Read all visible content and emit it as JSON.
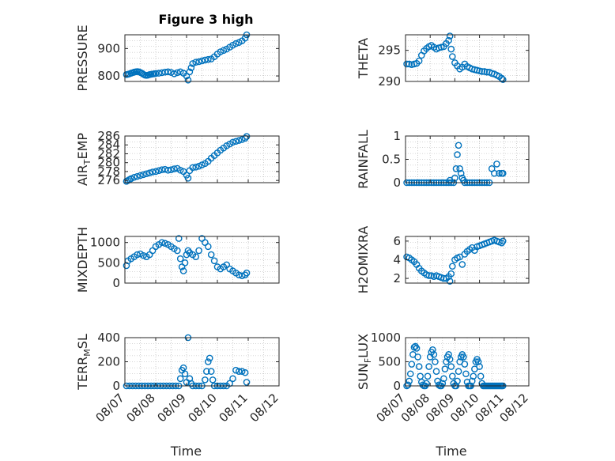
{
  "figure_title": "Figure 3 high",
  "x_axis_label": "Time",
  "x_tick_labels": [
    "08/07",
    "08/08",
    "08/09",
    "08/10",
    "08/11",
    "08/12"
  ],
  "colors": {
    "series": "#0072BD",
    "axes": "#262626",
    "grid": "#b0b0b0"
  },
  "chart_data": [
    {
      "type": "scatter",
      "title": "Figure 3 high",
      "ylabel": "PRESSURE",
      "ylim": [
        780,
        950
      ],
      "yticks": [
        800,
        900
      ],
      "xlim": [
        "08/07",
        "08/12"
      ],
      "grid": true,
      "series": [
        {
          "x": [
            0.05,
            0.1,
            0.15,
            0.2,
            0.25,
            0.3,
            0.35,
            0.4,
            0.45,
            0.5,
            0.55,
            0.6,
            0.65,
            0.7,
            0.75,
            0.8,
            0.85,
            0.9,
            0.95,
            1.0,
            1.1,
            1.2,
            1.3,
            1.4,
            1.5,
            1.6,
            1.7,
            1.8,
            1.9,
            2.0,
            2.05,
            2.1,
            2.15,
            2.2,
            2.3,
            2.4,
            2.5,
            2.6,
            2.7,
            2.8,
            2.9,
            3.0,
            3.1,
            3.2,
            3.3,
            3.4,
            3.5,
            3.6,
            3.7,
            3.8,
            3.9,
            3.95
          ],
          "y": [
            805,
            806,
            808,
            810,
            812,
            814,
            815,
            816,
            815,
            813,
            810,
            806,
            803,
            802,
            803,
            805,
            806,
            807,
            808,
            809,
            810,
            812,
            814,
            815,
            813,
            808,
            812,
            815,
            810,
            800,
            785,
            815,
            830,
            845,
            850,
            852,
            855,
            858,
            860,
            862,
            870,
            880,
            888,
            893,
            898,
            905,
            912,
            918,
            922,
            928,
            938,
            950
          ]
        }
      ]
    },
    {
      "type": "scatter",
      "ylabel": "THETA",
      "ylim": [
        290,
        297.5
      ],
      "yticks": [
        290,
        295
      ],
      "xlim": [
        "08/07",
        "08/12"
      ],
      "grid": true,
      "series": [
        {
          "x": [
            0.05,
            0.15,
            0.25,
            0.35,
            0.45,
            0.55,
            0.65,
            0.75,
            0.85,
            0.95,
            1.05,
            1.15,
            1.25,
            1.35,
            1.45,
            1.55,
            1.65,
            1.75,
            1.8,
            1.85,
            1.9,
            2.0,
            2.1,
            2.2,
            2.3,
            2.4,
            2.5,
            2.6,
            2.7,
            2.8,
            2.9,
            3.0,
            3.1,
            3.2,
            3.3,
            3.4,
            3.5,
            3.6,
            3.7,
            3.8,
            3.9,
            3.95
          ],
          "y": [
            292.8,
            292.8,
            292.7,
            292.8,
            292.9,
            293.3,
            294.2,
            294.9,
            295.3,
            295.6,
            295.8,
            295.5,
            295.2,
            295.4,
            295.5,
            295.6,
            296.1,
            296.6,
            297.3,
            295.2,
            294.0,
            293.0,
            292.5,
            292.0,
            292.3,
            292.8,
            292.4,
            292.2,
            292.0,
            291.9,
            291.8,
            291.7,
            291.6,
            291.6,
            291.5,
            291.5,
            291.3,
            291.2,
            291.0,
            290.8,
            290.5,
            290.3
          ]
        }
      ]
    },
    {
      "type": "scatter",
      "ylabel": "AIR_TEMP",
      "ylabel_main": "AIR",
      "ylabel_sub": "T",
      "ylabel_rest": "EMP",
      "ylim": [
        275.5,
        286
      ],
      "yticks": [
        276,
        278,
        280,
        282,
        284,
        286
      ],
      "xlim": [
        "08/07",
        "08/12"
      ],
      "grid": true,
      "series": [
        {
          "x": [
            0.05,
            0.1,
            0.15,
            0.2,
            0.3,
            0.4,
            0.5,
            0.6,
            0.7,
            0.8,
            0.9,
            1.0,
            1.1,
            1.2,
            1.3,
            1.4,
            1.5,
            1.6,
            1.7,
            1.8,
            1.9,
            2.0,
            2.05,
            2.1,
            2.2,
            2.3,
            2.4,
            2.5,
            2.6,
            2.7,
            2.8,
            2.9,
            3.0,
            3.1,
            3.2,
            3.3,
            3.4,
            3.5,
            3.6,
            3.7,
            3.8,
            3.9,
            3.95
          ],
          "y": [
            275.8,
            276.0,
            276.2,
            276.4,
            276.7,
            276.9,
            277.1,
            277.3,
            277.5,
            277.7,
            277.9,
            278.0,
            278.2,
            278.4,
            278.5,
            278.3,
            278.4,
            278.6,
            278.7,
            278.3,
            278.0,
            277.2,
            276.5,
            278.2,
            278.9,
            279.0,
            279.2,
            279.5,
            279.8,
            280.3,
            281.0,
            281.6,
            282.2,
            282.8,
            283.3,
            283.8,
            284.2,
            284.6,
            284.8,
            285.0,
            285.2,
            285.5,
            285.9
          ]
        }
      ]
    },
    {
      "type": "scatter",
      "ylabel": "RAINFALL",
      "ylim": [
        0,
        1
      ],
      "yticks": [
        0,
        0.5,
        1
      ],
      "xlim": [
        "08/07",
        "08/12"
      ],
      "grid": true,
      "series": [
        {
          "x": [
            0.05,
            0.15,
            0.25,
            0.35,
            0.45,
            0.55,
            0.65,
            0.75,
            0.85,
            0.95,
            1.05,
            1.15,
            1.25,
            1.35,
            1.45,
            1.55,
            1.65,
            1.75,
            1.8,
            1.85,
            1.95,
            2.0,
            2.05,
            2.1,
            2.15,
            2.2,
            2.25,
            2.3,
            2.35,
            2.4,
            2.5,
            2.6,
            2.7,
            2.8,
            2.9,
            3.0,
            3.1,
            3.2,
            3.3,
            3.4,
            3.5,
            3.6,
            3.7,
            3.8,
            3.9,
            3.95
          ],
          "y": [
            0,
            0,
            0,
            0,
            0,
            0,
            0,
            0,
            0,
            0,
            0,
            0,
            0,
            0,
            0,
            0,
            0,
            0,
            0.05,
            0,
            0,
            0.1,
            0.3,
            0.6,
            0.8,
            0.3,
            0.2,
            0.1,
            0.05,
            0,
            0,
            0,
            0,
            0,
            0,
            0,
            0,
            0,
            0,
            0,
            0.3,
            0.2,
            0.4,
            0.2,
            0.2,
            0.2
          ]
        }
      ]
    },
    {
      "type": "scatter",
      "ylabel": "MIXDEPTH",
      "ylim": [
        0,
        1150
      ],
      "yticks": [
        0,
        500,
        1000
      ],
      "xlim": [
        "08/07",
        "08/12"
      ],
      "grid": true,
      "series": [
        {
          "x": [
            0.05,
            0.1,
            0.2,
            0.3,
            0.4,
            0.5,
            0.6,
            0.7,
            0.8,
            0.9,
            1.0,
            1.1,
            1.2,
            1.3,
            1.4,
            1.5,
            1.6,
            1.7,
            1.75,
            1.8,
            1.85,
            1.9,
            1.95,
            2.0,
            2.05,
            2.1,
            2.2,
            2.3,
            2.4,
            2.5,
            2.6,
            2.7,
            2.8,
            2.9,
            3.0,
            3.1,
            3.2,
            3.3,
            3.4,
            3.5,
            3.6,
            3.7,
            3.8,
            3.9,
            3.95
          ],
          "y": [
            430,
            550,
            600,
            650,
            700,
            720,
            680,
            650,
            700,
            800,
            900,
            950,
            1000,
            980,
            950,
            900,
            850,
            800,
            1100,
            600,
            400,
            300,
            500,
            700,
            800,
            750,
            700,
            650,
            800,
            1100,
            1000,
            900,
            700,
            550,
            400,
            350,
            400,
            450,
            350,
            300,
            250,
            200,
            180,
            200,
            250
          ]
        }
      ]
    },
    {
      "type": "scatter",
      "ylabel": "H2OMIXRA",
      "ylim": [
        1.5,
        6.5
      ],
      "yticks": [
        2,
        4,
        6
      ],
      "xlim": [
        "08/07",
        "08/12"
      ],
      "grid": true,
      "series": [
        {
          "x": [
            0.05,
            0.15,
            0.25,
            0.35,
            0.45,
            0.55,
            0.65,
            0.75,
            0.85,
            0.95,
            1.05,
            1.15,
            1.25,
            1.35,
            1.45,
            1.55,
            1.65,
            1.75,
            1.8,
            1.85,
            1.9,
            2.0,
            2.1,
            2.2,
            2.3,
            2.4,
            2.5,
            2.6,
            2.7,
            2.8,
            2.9,
            3.0,
            3.1,
            3.2,
            3.3,
            3.4,
            3.5,
            3.6,
            3.7,
            3.8,
            3.9,
            3.95
          ],
          "y": [
            4.3,
            4.2,
            4.0,
            3.8,
            3.5,
            3.1,
            2.8,
            2.6,
            2.4,
            2.3,
            2.3,
            2.2,
            2.3,
            2.2,
            2.1,
            2.0,
            2.0,
            2.2,
            1.7,
            2.5,
            3.3,
            4.0,
            4.2,
            4.3,
            3.5,
            4.6,
            4.9,
            5.1,
            5.3,
            5.0,
            5.4,
            5.5,
            5.6,
            5.7,
            5.8,
            5.9,
            6.0,
            6.1,
            6.0,
            5.9,
            5.8,
            6.0
          ]
        }
      ]
    },
    {
      "type": "scatter",
      "ylabel": "TERR_MSL",
      "ylabel_main": "TERR",
      "ylabel_sub": "M",
      "ylabel_rest": "SL",
      "ylim": [
        0,
        400
      ],
      "yticks": [
        0,
        200,
        400
      ],
      "xlim": [
        "08/07",
        "08/12"
      ],
      "grid": true,
      "series": [
        {
          "x": [
            0.05,
            0.15,
            0.25,
            0.35,
            0.45,
            0.55,
            0.65,
            0.75,
            0.85,
            0.95,
            1.05,
            1.15,
            1.25,
            1.35,
            1.45,
            1.55,
            1.65,
            1.75,
            1.8,
            1.85,
            1.9,
            1.95,
            2.0,
            2.05,
            2.1,
            2.15,
            2.2,
            2.3,
            2.4,
            2.5,
            2.6,
            2.65,
            2.7,
            2.75,
            2.8,
            2.85,
            2.9,
            3.0,
            3.1,
            3.2,
            3.3,
            3.4,
            3.5,
            3.6,
            3.7,
            3.8,
            3.9,
            3.95
          ],
          "y": [
            0,
            0,
            0,
            0,
            0,
            0,
            0,
            0,
            0,
            0,
            0,
            0,
            0,
            0,
            0,
            0,
            0,
            0,
            60,
            130,
            150,
            100,
            30,
            400,
            60,
            20,
            0,
            0,
            0,
            0,
            50,
            120,
            200,
            230,
            120,
            50,
            0,
            0,
            0,
            0,
            0,
            20,
            60,
            130,
            120,
            120,
            110,
            30
          ]
        }
      ]
    },
    {
      "type": "scatter",
      "ylabel": "SUN_FLUX",
      "ylabel_main": "SUN",
      "ylabel_sub": "F",
      "ylabel_rest": "LUX",
      "ylim": [
        0,
        1000
      ],
      "yticks": [
        0,
        500,
        1000
      ],
      "xlim": [
        "08/07",
        "08/12"
      ],
      "grid": true,
      "series": [
        {
          "x": [
            0.05,
            0.1,
            0.15,
            0.2,
            0.25,
            0.3,
            0.35,
            0.4,
            0.45,
            0.5,
            0.55,
            0.6,
            0.65,
            0.7,
            0.75,
            0.8,
            0.85,
            0.9,
            0.95,
            1.0,
            1.05,
            1.1,
            1.15,
            1.2,
            1.25,
            1.3,
            1.35,
            1.4,
            1.45,
            1.5,
            1.55,
            1.6,
            1.65,
            1.7,
            1.75,
            1.8,
            1.85,
            1.9,
            1.95,
            2.0,
            2.05,
            2.1,
            2.15,
            2.2,
            2.25,
            2.3,
            2.35,
            2.4,
            2.45,
            2.5,
            2.55,
            2.6,
            2.65,
            2.7,
            2.75,
            2.8,
            2.85,
            2.9,
            2.95,
            3.0,
            3.05,
            3.1,
            3.15,
            3.2,
            3.25,
            3.3,
            3.35,
            3.4,
            3.45,
            3.5,
            3.55,
            3.6,
            3.65,
            3.7,
            3.75,
            3.8,
            3.85,
            3.9,
            3.95
          ],
          "y": [
            0,
            20,
            100,
            250,
            450,
            650,
            800,
            820,
            780,
            600,
            400,
            200,
            80,
            20,
            0,
            0,
            50,
            200,
            400,
            600,
            700,
            750,
            650,
            500,
            300,
            100,
            20,
            0,
            0,
            50,
            150,
            350,
            500,
            600,
            650,
            550,
            400,
            200,
            50,
            0,
            0,
            100,
            300,
            500,
            600,
            650,
            600,
            450,
            250,
            80,
            0,
            0,
            0,
            100,
            200,
            350,
            500,
            550,
            500,
            400,
            200,
            50,
            0,
            0,
            0,
            0,
            0,
            0,
            0,
            0,
            0,
            0,
            0,
            0,
            0,
            0,
            0,
            0,
            0
          ]
        }
      ]
    }
  ]
}
